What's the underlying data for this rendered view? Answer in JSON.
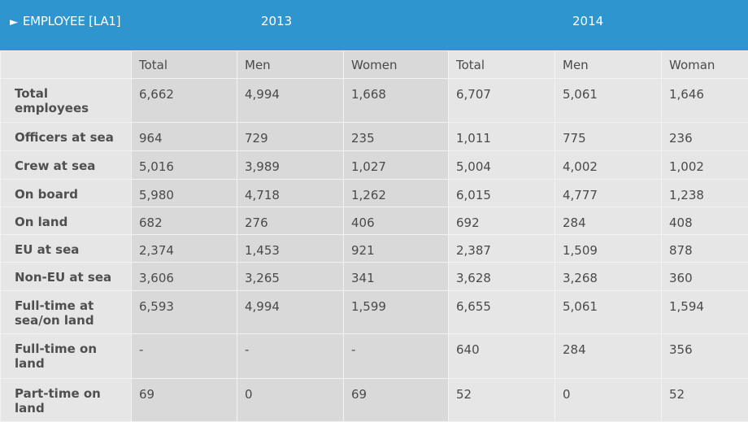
{
  "header": {
    "title": "EMPLOYEE [LA1]",
    "year_2013": "2013",
    "year_2014": "2014"
  },
  "columns": [
    "Total",
    "Men",
    "Women",
    "Total",
    "Men",
    "Woman"
  ],
  "rows": [
    {
      "label": "Total employees",
      "values": [
        "6,662",
        "4,994",
        "1,668",
        "6,707",
        "5,061",
        "1,646"
      ]
    },
    {
      "label": "Officers at sea",
      "values": [
        "964",
        "729",
        "235",
        "1,011",
        "775",
        "236"
      ]
    },
    {
      "label": "Crew at sea",
      "values": [
        "5,016",
        "3,989",
        "1,027",
        "5,004",
        "4,002",
        "1,002"
      ]
    },
    {
      "label": "On board",
      "values": [
        "5,980",
        "4,718",
        "1,262",
        "6,015",
        "4,777",
        "1,238"
      ]
    },
    {
      "label": "On land",
      "values": [
        "682",
        "276",
        "406",
        "692",
        "284",
        "408"
      ]
    },
    {
      "label": "EU at sea",
      "values": [
        "2,374",
        "1,453",
        "921",
        "2,387",
        "1,509",
        "878"
      ]
    },
    {
      "label": "Non-EU at sea",
      "values": [
        "3,606",
        "3,265",
        "341",
        "3,628",
        "3,268",
        "360"
      ]
    },
    {
      "label": "Full-time at sea/on land",
      "values": [
        "6,593",
        "4,994",
        "1,599",
        "6,655",
        "5,061",
        "1,594"
      ]
    },
    {
      "label": "Full-time on land",
      "values": [
        "-",
        "-",
        "-",
        "640",
        "284",
        "356"
      ]
    },
    {
      "label": "Part-time on land",
      "values": [
        "69",
        "0",
        "69",
        "52",
        "0",
        "52"
      ]
    }
  ]
}
